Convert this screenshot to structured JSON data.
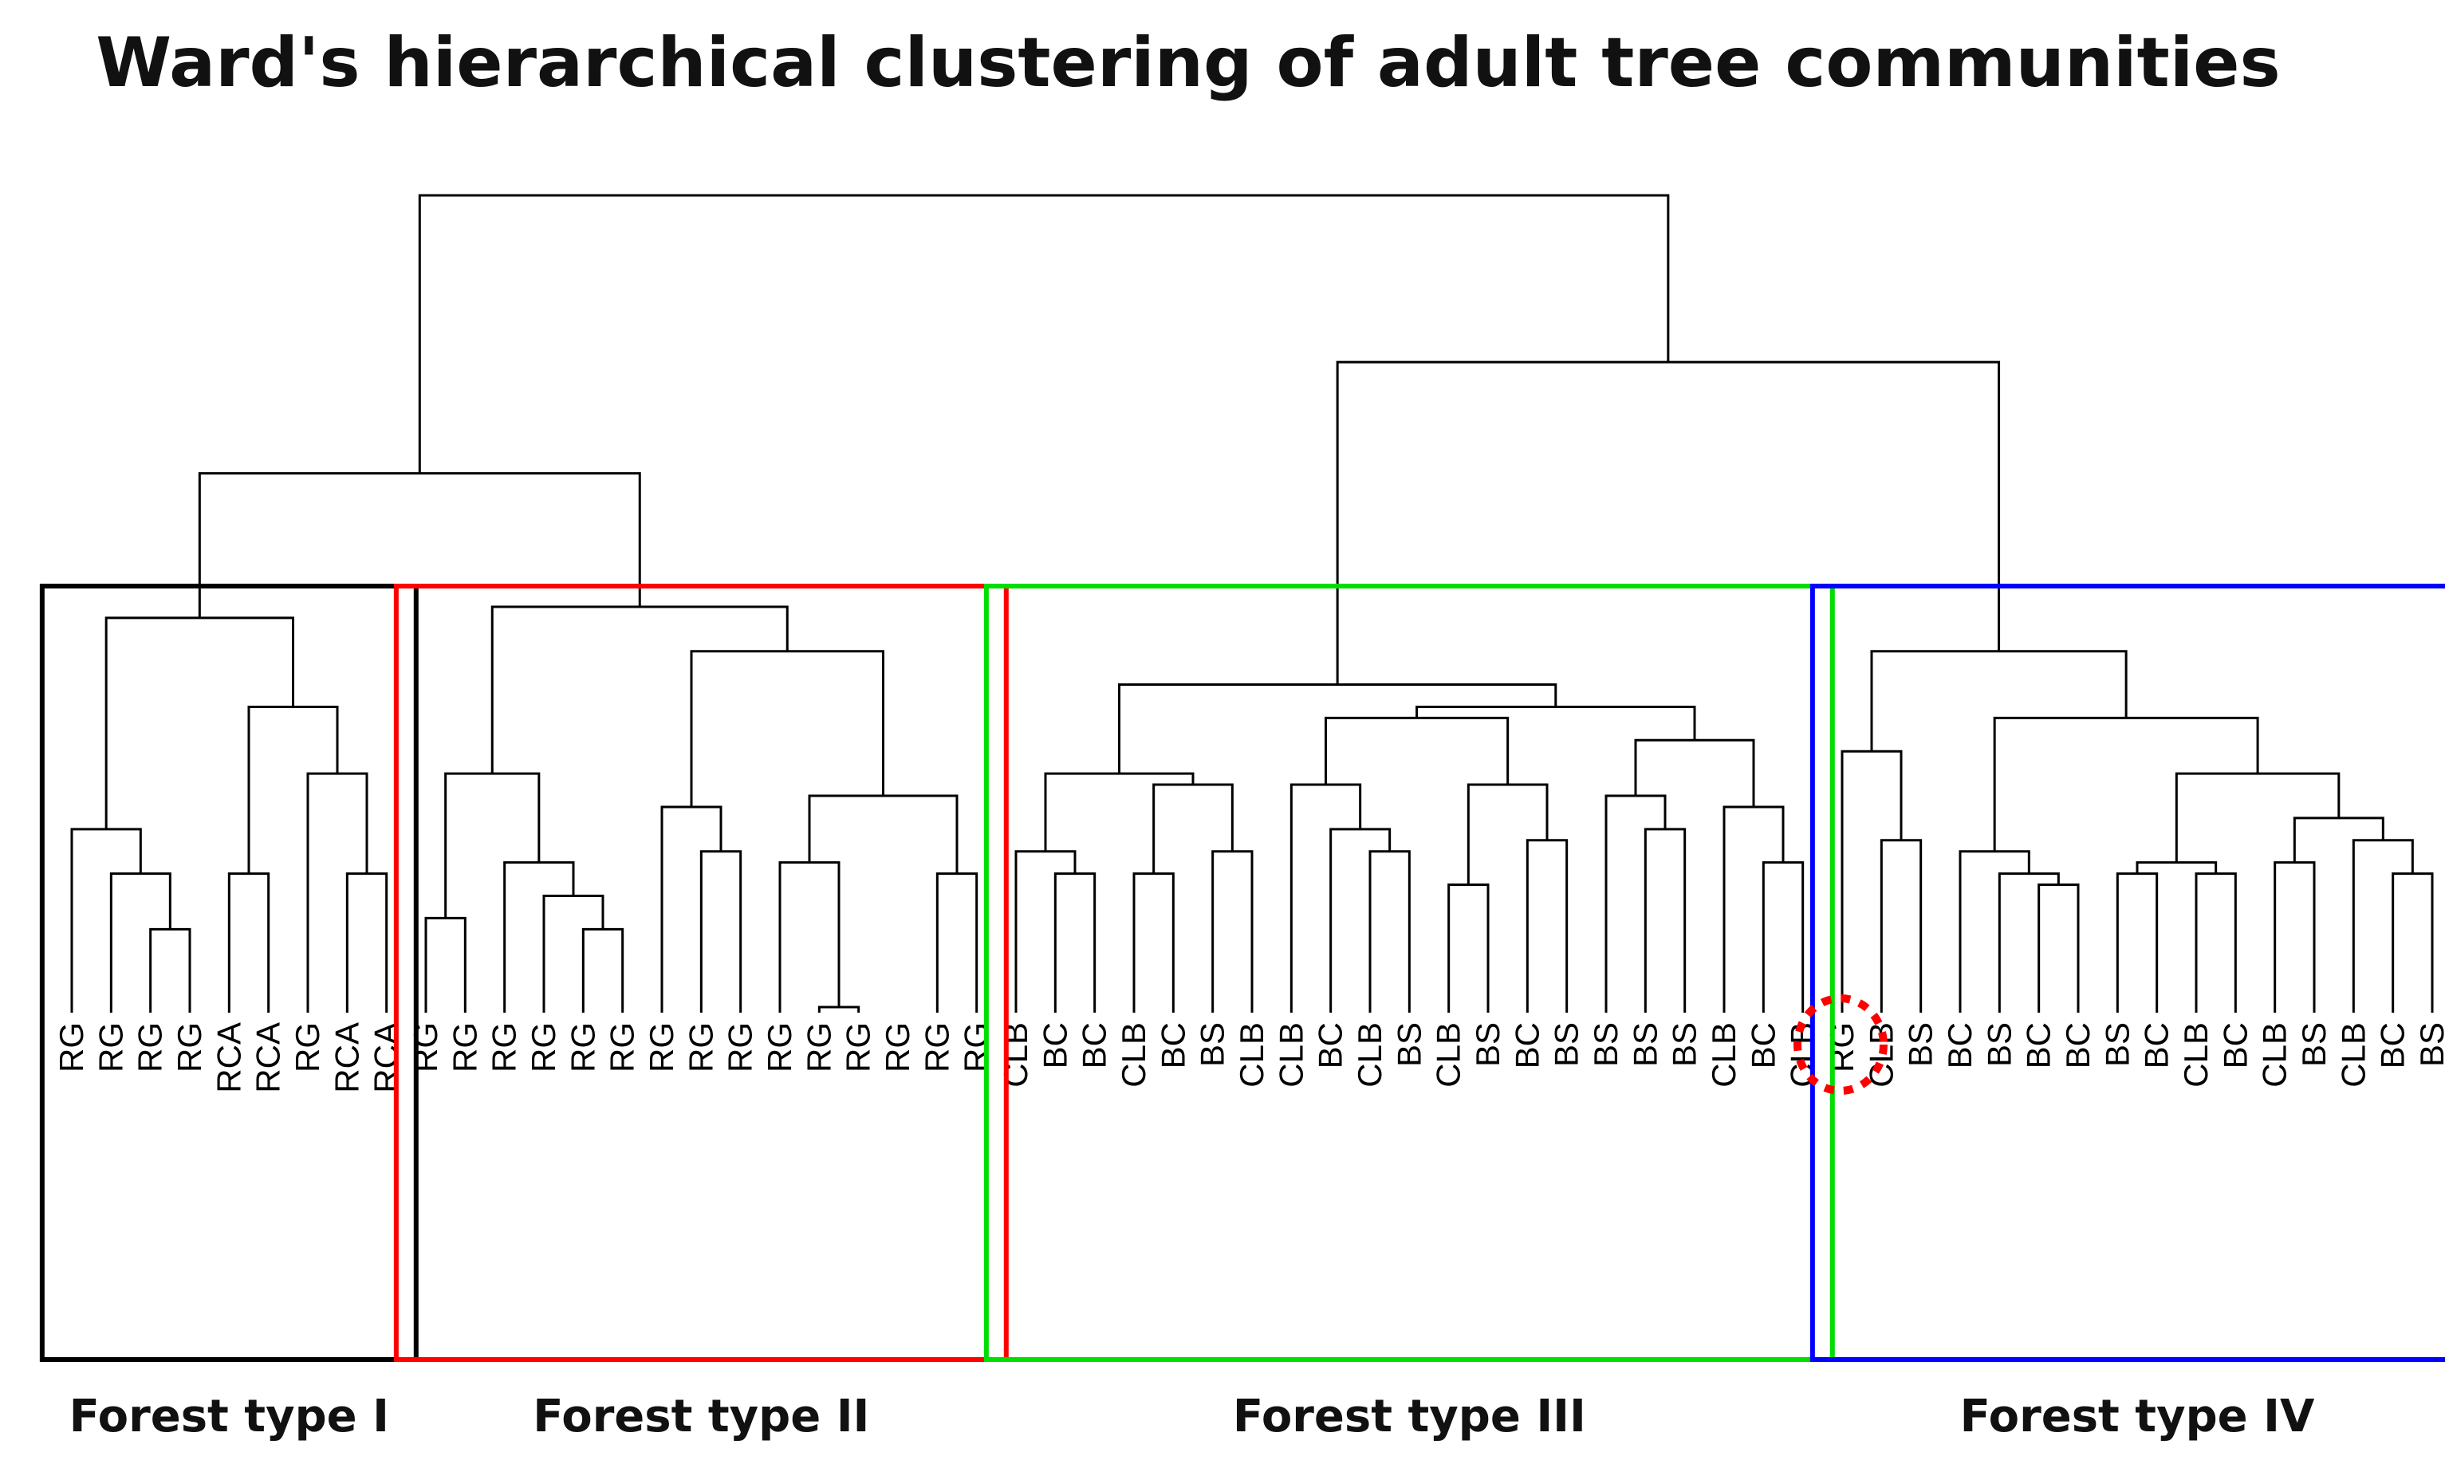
{
  "chart_data": {
    "type": "dendrogram",
    "title": "Ward's hierarchical clustering of adult tree communities",
    "method": "Ward",
    "leaves": [
      "RG",
      "RG",
      "RG",
      "RG",
      "RCA",
      "RCA",
      "RG",
      "RCA",
      "RCA",
      "RG",
      "RG",
      "RG",
      "RG",
      "RG",
      "RG",
      "RG",
      "RG",
      "RG",
      "RG",
      "RG",
      "RG",
      "RG",
      "RG",
      "RG",
      "CLB",
      "BC",
      "BC",
      "CLB",
      "BC",
      "BS",
      "CLB",
      "CLB",
      "BC",
      "CLB",
      "BS",
      "CLB",
      "BS",
      "BC",
      "BS",
      "BS",
      "BS",
      "BS",
      "CLB",
      "BC",
      "CLB",
      "RG",
      "CLB",
      "BS",
      "BC",
      "BS",
      "BC",
      "BC",
      "BS",
      "BC",
      "CLB",
      "BC",
      "CLB",
      "BS",
      "CLB",
      "BC",
      "BS"
    ],
    "merges": [
      {
        "ids": [
          2,
          3
        ],
        "height": 2.4
      },
      {
        "ids": [
          1,
          "m0"
        ],
        "height": 2.9
      },
      {
        "ids": [
          0,
          "m1"
        ],
        "height": 3.3
      },
      {
        "ids": [
          4,
          5
        ],
        "height": 2.9
      },
      {
        "ids": [
          7,
          8
        ],
        "height": 2.9
      },
      {
        "ids": [
          6,
          "m4"
        ],
        "height": 3.8
      },
      {
        "ids": [
          "m3",
          "m5"
        ],
        "height": 4.4
      },
      {
        "ids": [
          "m2",
          "m6"
        ],
        "height": 5.2
      },
      {
        "ids": [
          9,
          10
        ],
        "height": 2.5
      },
      {
        "ids": [
          13,
          14
        ],
        "height": 2.4
      },
      {
        "ids": [
          12,
          "m9"
        ],
        "height": 2.7
      },
      {
        "ids": [
          11,
          "m10"
        ],
        "height": 3.0
      },
      {
        "ids": [
          "m8",
          "m11"
        ],
        "height": 3.8
      },
      {
        "ids": [
          16,
          17
        ],
        "height": 3.1
      },
      {
        "ids": [
          15,
          "m13"
        ],
        "height": 3.5
      },
      {
        "ids": [
          19,
          20
        ],
        "height": 1.7
      },
      {
        "ids": [
          18,
          "m15"
        ],
        "height": 3.0
      },
      {
        "ids": [
          22,
          23
        ],
        "height": 2.9
      },
      {
        "ids": [
          "m16",
          "m17"
        ],
        "height": 3.6
      },
      {
        "ids": [
          "m14",
          "m18"
        ],
        "height": 4.9
      },
      {
        "ids": [
          "m12",
          "m19"
        ],
        "height": 5.3
      },
      {
        "ids": [
          "m7",
          "m20"
        ],
        "height": 6.5
      },
      {
        "ids": [
          25,
          26
        ],
        "height": 2.9
      },
      {
        "ids": [
          24,
          "m22"
        ],
        "height": 3.1
      },
      {
        "ids": [
          27,
          28
        ],
        "height": 2.9
      },
      {
        "ids": [
          29,
          30
        ],
        "height": 3.1
      },
      {
        "ids": [
          "m24",
          "m25"
        ],
        "height": 3.7
      },
      {
        "ids": [
          "m23",
          "m26"
        ],
        "height": 3.8
      },
      {
        "ids": [
          33,
          34
        ],
        "height": 3.1
      },
      {
        "ids": [
          32,
          "m28"
        ],
        "height": 3.3
      },
      {
        "ids": [
          31,
          "m29"
        ],
        "height": 3.7
      },
      {
        "ids": [
          35,
          36
        ],
        "height": 2.8
      },
      {
        "ids": [
          37,
          38
        ],
        "height": 3.2
      },
      {
        "ids": [
          "m31",
          "m32"
        ],
        "height": 3.7
      },
      {
        "ids": [
          "m30",
          "m33"
        ],
        "height": 4.3
      },
      {
        "ids": [
          40,
          41
        ],
        "height": 3.3
      },
      {
        "ids": [
          39,
          "m35"
        ],
        "height": 3.6
      },
      {
        "ids": [
          43,
          44
        ],
        "height": 3.0
      },
      {
        "ids": [
          42,
          "m37"
        ],
        "height": 3.5
      },
      {
        "ids": [
          "m36",
          "m38"
        ],
        "height": 4.1
      },
      {
        "ids": [
          "m34",
          "m39"
        ],
        "height": 4.4
      },
      {
        "ids": [
          "m27",
          "m40"
        ],
        "height": 4.6
      },
      {
        "ids": [
          46,
          47
        ],
        "height": 3.2
      },
      {
        "ids": [
          45,
          "m42"
        ],
        "height": 4.0
      },
      {
        "ids": [
          50,
          51
        ],
        "height": 2.8
      },
      {
        "ids": [
          49,
          "m44"
        ],
        "height": 2.9
      },
      {
        "ids": [
          48,
          "m45"
        ],
        "height": 3.1
      },
      {
        "ids": [
          52,
          53
        ],
        "height": 2.9
      },
      {
        "ids": [
          54,
          55
        ],
        "height": 2.9
      },
      {
        "ids": [
          "m47",
          "m48"
        ],
        "height": 3.0
      },
      {
        "ids": [
          56,
          57
        ],
        "height": 3.0
      },
      {
        "ids": [
          59,
          60
        ],
        "height": 2.9
      },
      {
        "ids": [
          58,
          "m51"
        ],
        "height": 3.2
      },
      {
        "ids": [
          "m50",
          "m52"
        ],
        "height": 3.4
      },
      {
        "ids": [
          "m49",
          "m53"
        ],
        "height": 3.8
      },
      {
        "ids": [
          "m46",
          "m54"
        ],
        "height": 4.3
      },
      {
        "ids": [
          "m43",
          "m55"
        ],
        "height": 4.9
      },
      {
        "ids": [
          "m41",
          "m56"
        ],
        "height": 7.5
      },
      {
        "ids": [
          "m21",
          "m57"
        ],
        "height": 9.0
      }
    ],
    "groups": [
      {
        "label": "Forest type I",
        "color": "#000000",
        "leaf_range": [
          0,
          8
        ]
      },
      {
        "label": "Forest type II",
        "color": "#ff0000",
        "leaf_range": [
          9,
          23
        ]
      },
      {
        "label": "Forest type III",
        "color": "#00dd00",
        "leaf_range": [
          24,
          44
        ]
      },
      {
        "label": "Forest type IV",
        "color": "#0000ff",
        "leaf_range": [
          45,
          60
        ]
      }
    ],
    "highlight": {
      "leaf_index": 45,
      "label": "RG",
      "color": "#ff0000"
    },
    "ylim": [
      0,
      9.0
    ],
    "xlabel": "",
    "ylabel": ""
  }
}
